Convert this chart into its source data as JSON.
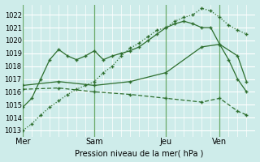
{
  "xlabel": "Pression niveau de la mer( hPa )",
  "background_color": "#ceecea",
  "grid_color": "#ffffff",
  "line_color": "#2d6e2d",
  "ylim": [
    1012.5,
    1022.8
  ],
  "yticks": [
    1013,
    1014,
    1015,
    1016,
    1017,
    1018,
    1019,
    1020,
    1021,
    1022
  ],
  "day_labels": [
    "Mer",
    "Sam",
    "Jeu",
    "Ven"
  ],
  "day_positions": [
    0,
    8,
    16,
    22
  ],
  "xlim": [
    0,
    26
  ],
  "series1_dotted": {
    "x": [
      0,
      1,
      2,
      3,
      4,
      5,
      6,
      7,
      8,
      9,
      10,
      11,
      12,
      13,
      14,
      15,
      16,
      17,
      18,
      19,
      20,
      21,
      22,
      23,
      24,
      25
    ],
    "y": [
      1013.0,
      1013.5,
      1014.2,
      1014.8,
      1015.3,
      1015.8,
      1016.2,
      1016.5,
      1016.8,
      1017.5,
      1018.0,
      1018.8,
      1019.4,
      1019.8,
      1020.3,
      1020.8,
      1021.0,
      1021.5,
      1021.8,
      1022.0,
      1022.5,
      1022.3,
      1021.8,
      1021.2,
      1020.8,
      1020.5
    ]
  },
  "series2_solid_jagged": {
    "x": [
      0,
      1,
      2,
      3,
      4,
      5,
      6,
      7,
      8,
      9,
      10,
      11,
      12,
      13,
      14,
      15,
      16,
      17,
      18,
      19,
      20,
      21,
      22,
      23,
      24,
      25
    ],
    "y": [
      1014.8,
      1015.5,
      1017.0,
      1018.5,
      1019.3,
      1018.8,
      1018.5,
      1018.8,
      1019.2,
      1018.5,
      1018.8,
      1019.0,
      1019.2,
      1019.5,
      1020.0,
      1020.5,
      1021.0,
      1021.3,
      1021.5,
      1021.3,
      1021.0,
      1021.0,
      1019.7,
      1018.5,
      1017.0,
      1016.0
    ]
  },
  "series3_solid_smooth": {
    "x": [
      0,
      4,
      8,
      12,
      16,
      20,
      22,
      24,
      25
    ],
    "y": [
      1016.5,
      1016.8,
      1016.5,
      1016.8,
      1017.5,
      1019.5,
      1019.7,
      1018.8,
      1016.8
    ]
  },
  "series4_long_flat": {
    "x": [
      0,
      4,
      8,
      12,
      16,
      20,
      22,
      24,
      25
    ],
    "y": [
      1016.2,
      1016.3,
      1016.0,
      1015.8,
      1015.5,
      1015.2,
      1015.5,
      1014.5,
      1014.2
    ]
  }
}
